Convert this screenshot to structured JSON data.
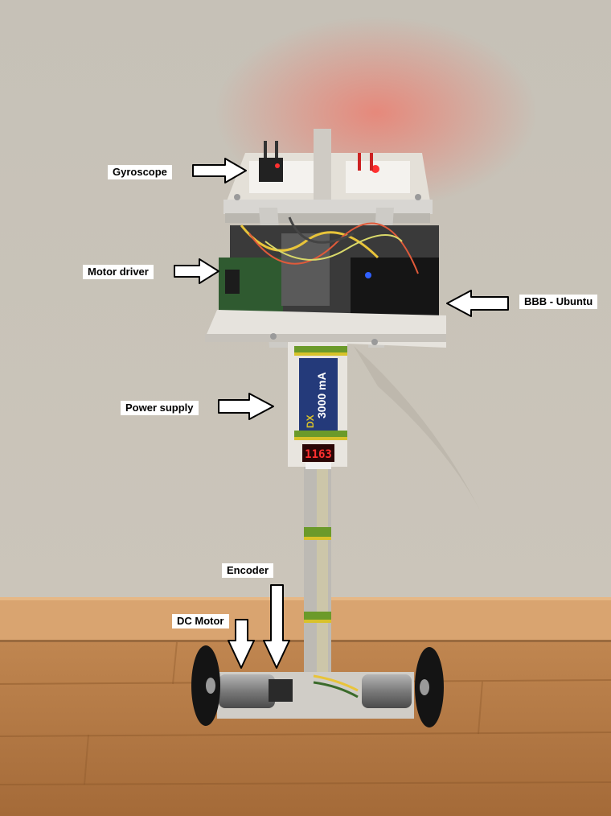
{
  "labels": {
    "gyroscope": "Gyroscope",
    "motor_driver": "Motor driver",
    "bbb_ubuntu": "BBB - Ubuntu",
    "power_supply": "Power supply",
    "encoder": "Encoder",
    "dc_motor": "DC Motor"
  },
  "battery": {
    "capacity_text": "3000 mA",
    "brand_text": "DX"
  },
  "voltmeter": {
    "reading": "1163"
  },
  "colors": {
    "wall": "#c9c3b8",
    "floor": "#b07a46",
    "baseboard": "#d9a470",
    "aluminum": "#d8d6d2",
    "arrow_fill": "#ffffff",
    "arrow_stroke": "#000000",
    "led_red": "#ff3030",
    "led_blue": "#3060ff",
    "tape_green": "#6b9a2a",
    "tape_yellow": "#d8c22a",
    "battery_blue": "#243a7a",
    "wheel": "#141414",
    "motor": "#8c8c8c"
  }
}
